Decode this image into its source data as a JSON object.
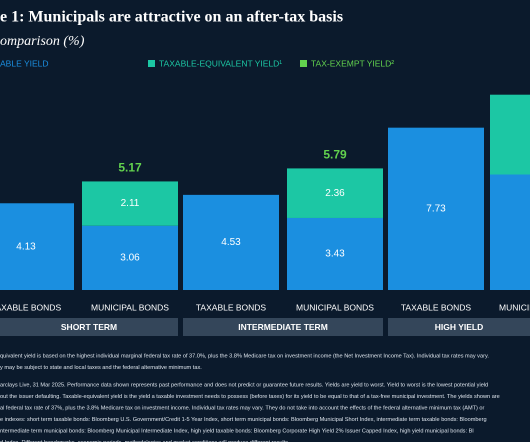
{
  "chart_data": {
    "type": "bar",
    "stacked": true,
    "title": "e 1: Municipals are attractive on an after-tax basis",
    "subtitle": "omparison (%)",
    "categories": [
      "TAXABLE BONDS",
      "MUNICIPAL BONDS",
      "TAXABLE BONDS",
      "MUNICIPAL BONDS",
      "TAXABLE BONDS",
      "MUNICIPAL BONDS"
    ],
    "groups": [
      "SHORT TERM",
      "INTERMEDIATE TERM",
      "HIGH YIELD"
    ],
    "series": [
      {
        "name": "ABLE YIELD",
        "color": "#1b8fe0",
        "values": [
          4.13,
          3.06,
          4.53,
          3.43,
          7.73,
          5.5
        ]
      },
      {
        "name": "TAXABLE-EQUIVALENT YIELD¹",
        "color": "#1cc7a4",
        "values": [
          null,
          2.11,
          null,
          2.36,
          null,
          3.8
        ]
      },
      {
        "name": "TAX-EXEMPT YIELD²",
        "color": "#62d24e",
        "values": [
          null,
          5.17,
          null,
          5.79,
          null,
          9.4
        ]
      }
    ],
    "footnotes": [
      "quivalent yield is based on the highest individual marginal federal tax rate of 37.0%, plus the 3.8% Medicare tax on investment income (the Net Investment Income Tax). Individual tax rates may vary.",
      "y may be subject to state and local taxes and the federal alternative minimum tax.",
      "arclays Live, 31 Mar 2025. Performance data shown represents past performance and does not predict or guarantee future results. Yields are yield to worst. Yield to worst is the lowest potential yield",
      "out the issuer defaulting. Taxable-equivalent yield is the yield a taxable investment needs to possess (before taxes) for its yield to be equal to that of a tax-free municipal investment. The yields shown are",
      "al federal tax rate of 37%, plus the 3.8% Medicare tax on investment income. Individual tax rates may vary. They do not take into account the effects of the federal alternative minimum tax (AMT) or",
      "e indexes: short term taxable bonds: Bloomberg U.S. Government/Credit 1-5 Year Index, short term municipal bonds: Bloomberg Municipal Short Index, intermediate term taxable bonds: Bloomberg",
      "ntermediate term municipal bonds: Bloomberg Municipal Intermediate Index, high yield taxable bonds: Bloomberg Corporate High Yield 2% Issuer Capped Index, high yield municipal bonds: Bl",
      "d Index. Different benchmarks, economic periods, methodologies and market conditions will produce different results."
    ]
  }
}
